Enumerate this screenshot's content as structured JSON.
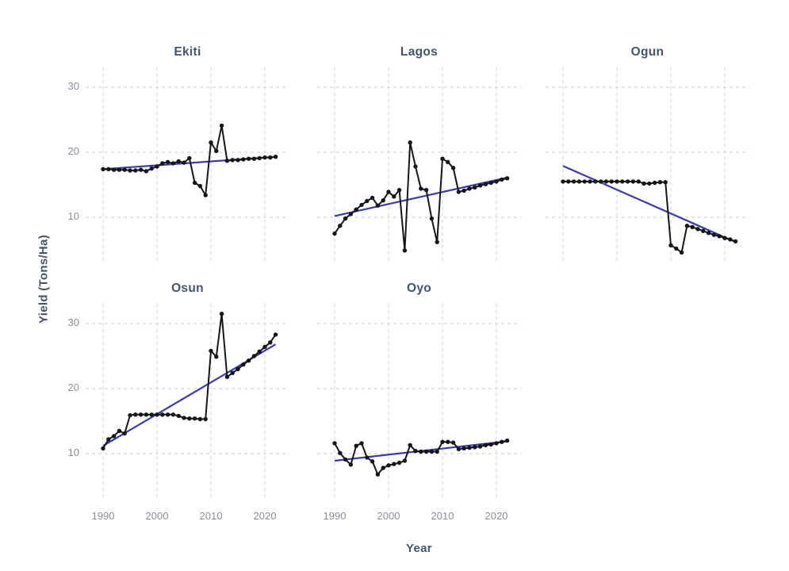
{
  "chart_data": {
    "type": "line",
    "title": "",
    "xlabel": "Year",
    "ylabel": "Yield (Tons/Ha)",
    "facet_variable": "State",
    "x_ticks": [
      1990,
      2000,
      2010,
      2020
    ],
    "y_ticks": [
      30,
      20,
      10
    ],
    "xlim": [
      1988.4,
      2023.6
    ],
    "ylim": [
      3,
      33
    ],
    "grid": "dashed-major-gridlines",
    "legend": "none",
    "x": [
      1990,
      1991,
      1992,
      1993,
      1994,
      1995,
      1996,
      1997,
      1998,
      1999,
      2000,
      2001,
      2002,
      2003,
      2004,
      2005,
      2006,
      2007,
      2008,
      2009,
      2010,
      2011,
      2012,
      2013,
      2014,
      2015,
      2016,
      2017,
      2018,
      2019,
      2020,
      2021,
      2022
    ],
    "facets": [
      {
        "name": "Ekiti",
        "values": [
          17.4,
          17.4,
          17.3,
          17.3,
          17.3,
          17.2,
          17.2,
          17.3,
          17.1,
          17.5,
          17.8,
          18.3,
          18.5,
          18.3,
          18.6,
          18.4,
          19.1,
          15.3,
          14.8,
          13.4,
          21.5,
          20.2,
          24.1,
          18.7,
          18.8,
          18.8,
          18.9,
          19.0,
          19.0,
          19.1,
          19.2,
          19.2,
          19.3
        ],
        "trend": {
          "x": [
            1990,
            2022
          ],
          "y": [
            17.4,
            19.3
          ]
        }
      },
      {
        "name": "Lagos",
        "values": [
          7.5,
          8.7,
          9.8,
          10.5,
          11.2,
          11.9,
          12.5,
          13.0,
          11.8,
          12.6,
          13.9,
          13.2,
          14.2,
          4.9,
          21.5,
          17.8,
          14.4,
          14.2,
          9.8,
          6.2,
          19.0,
          18.5,
          17.6,
          13.9,
          14.1,
          14.4,
          14.6,
          14.9,
          15.1,
          15.3,
          15.5,
          15.8,
          16.0
        ],
        "trend": {
          "x": [
            1990,
            2022
          ],
          "y": [
            10.2,
            16.1
          ]
        }
      },
      {
        "name": "Ogun",
        "values": [
          15.5,
          15.5,
          15.5,
          15.5,
          15.5,
          15.5,
          15.5,
          15.5,
          15.5,
          15.5,
          15.5,
          15.5,
          15.5,
          15.5,
          15.5,
          15.2,
          15.2,
          15.3,
          15.4,
          15.4,
          5.7,
          5.2,
          4.6,
          8.7,
          8.5,
          8.2,
          7.9,
          7.6,
          7.3,
          7.1,
          6.8,
          6.6,
          6.3
        ],
        "trend": {
          "x": [
            1990,
            2022
          ],
          "y": [
            17.9,
            6.2
          ]
        }
      },
      {
        "name": "Osun",
        "values": [
          10.8,
          12.2,
          12.7,
          13.5,
          13.1,
          15.9,
          16.0,
          16.0,
          16.0,
          16.0,
          16.0,
          16.0,
          16.0,
          16.0,
          15.8,
          15.5,
          15.4,
          15.4,
          15.3,
          15.3,
          25.8,
          24.9,
          31.5,
          21.8,
          22.4,
          23.0,
          23.7,
          24.3,
          25.0,
          25.7,
          26.4,
          27.1,
          28.3
        ],
        "trend": {
          "x": [
            1990,
            2022
          ],
          "y": [
            11.2,
            26.8
          ]
        }
      },
      {
        "name": "Oyo",
        "values": [
          11.6,
          10.1,
          9.1,
          8.3,
          11.2,
          11.6,
          9.4,
          8.8,
          6.8,
          7.8,
          8.2,
          8.4,
          8.6,
          8.9,
          11.3,
          10.4,
          10.3,
          10.3,
          10.3,
          10.3,
          11.8,
          11.8,
          11.7,
          10.7,
          10.8,
          10.9,
          11.0,
          11.1,
          11.3,
          11.4,
          11.6,
          11.8,
          12.0
        ],
        "trend": {
          "x": [
            1990,
            2022
          ],
          "y": [
            8.9,
            11.9
          ]
        }
      }
    ],
    "colors": {
      "series": "#161616",
      "trend": "#3a3ab5",
      "grid": "#d8d8d8",
      "facet_title": "#44546a",
      "axis_title": "#44546a",
      "tick_label": "#8a8f98"
    }
  }
}
